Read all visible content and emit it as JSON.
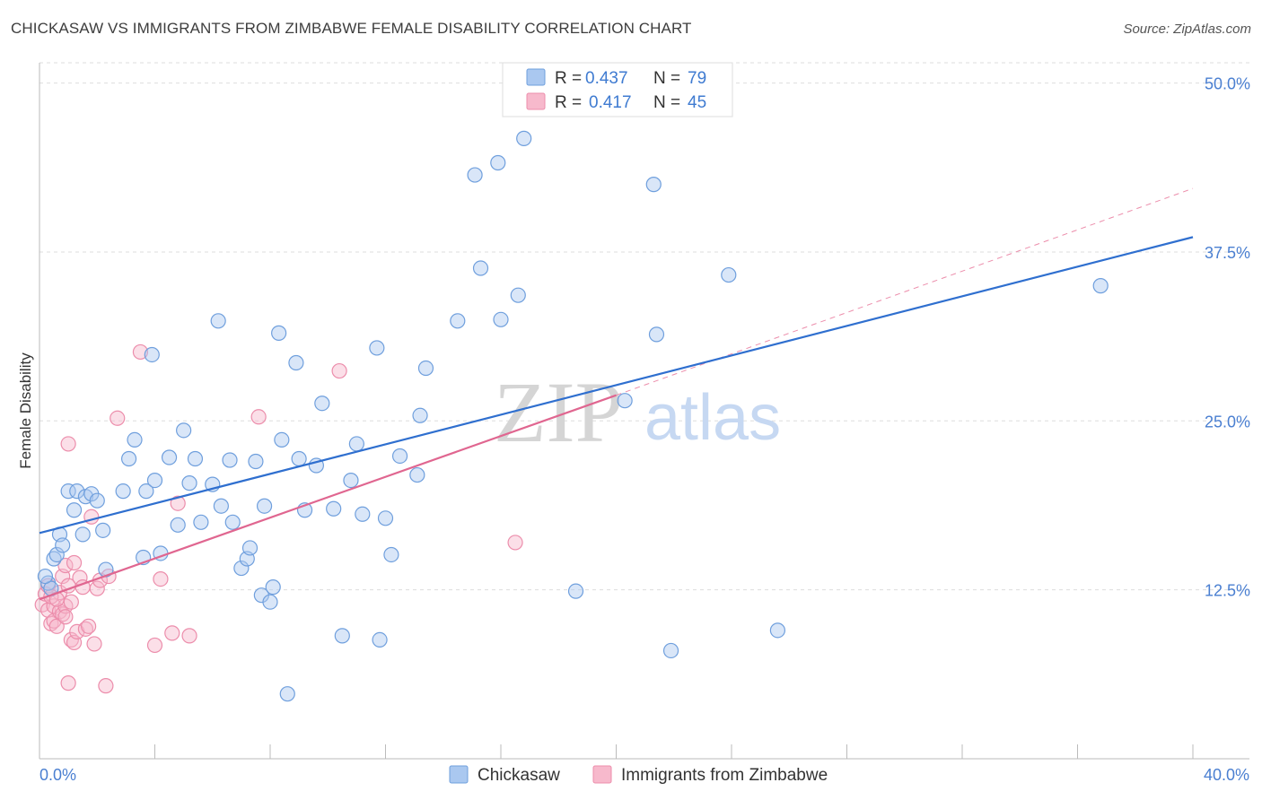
{
  "header": {
    "title": "CHICKASAW VS IMMIGRANTS FROM ZIMBABWE FEMALE DISABILITY CORRELATION CHART",
    "source": "Source: ZipAtlas.com"
  },
  "watermark": {
    "zip": "ZIP",
    "atlas": "atlas"
  },
  "legend_top": [
    {
      "r_label": "R =",
      "r": "0.437",
      "n_label": "N =",
      "n": "79"
    },
    {
      "r_label": "R =",
      "r": "0.417",
      "n_label": "N =",
      "n": "45"
    }
  ],
  "chart_data": {
    "type": "scatter",
    "title": "CHICKASAW VS IMMIGRANTS FROM ZIMBABWE FEMALE DISABILITY CORRELATION CHART",
    "xlabel": "",
    "ylabel": "Female Disability",
    "xlim": [
      0,
      40
    ],
    "ylim": [
      0,
      51.5
    ],
    "x_tick_labels": [
      "0.0%",
      "40.0%"
    ],
    "y_ticks": [
      12.5,
      25.0,
      37.5,
      50.0
    ],
    "y_tick_labels": [
      "12.5%",
      "25.0%",
      "37.5%",
      "50.0%"
    ],
    "legend": [
      "Chickasaw",
      "Immigrants from Zimbabwe"
    ],
    "colors": {
      "chickasaw_fill": "#aac8f0",
      "chickasaw_stroke": "#6f9fdd",
      "chickasaw_line": "#2f6fcf",
      "zimbabwe_fill": "#f7b9cc",
      "zimbabwe_stroke": "#ec8dab",
      "zimbabwe_line": "#e06690",
      "tick_text": "#4a7fd1"
    },
    "series": [
      {
        "name": "Chickasaw",
        "R": 0.437,
        "N": 79,
        "trend": {
          "x": [
            0,
            40
          ],
          "y": [
            16.7,
            38.6
          ]
        },
        "points": [
          [
            0.3,
            13.0
          ],
          [
            0.4,
            12.6
          ],
          [
            0.5,
            14.8
          ],
          [
            0.6,
            15.1
          ],
          [
            0.7,
            16.6
          ],
          [
            0.8,
            15.8
          ],
          [
            1.0,
            19.8
          ],
          [
            1.2,
            18.4
          ],
          [
            1.3,
            19.8
          ],
          [
            1.5,
            16.6
          ],
          [
            1.6,
            19.4
          ],
          [
            1.8,
            19.6
          ],
          [
            2.0,
            19.1
          ],
          [
            2.2,
            16.9
          ],
          [
            2.3,
            14.0
          ],
          [
            2.9,
            19.8
          ],
          [
            3.1,
            22.2
          ],
          [
            3.3,
            23.6
          ],
          [
            3.6,
            14.9
          ],
          [
            3.7,
            19.8
          ],
          [
            3.9,
            29.9
          ],
          [
            4.0,
            20.6
          ],
          [
            4.2,
            15.2
          ],
          [
            4.5,
            22.3
          ],
          [
            4.8,
            17.3
          ],
          [
            5.0,
            24.3
          ],
          [
            5.2,
            20.4
          ],
          [
            5.4,
            22.2
          ],
          [
            5.6,
            17.5
          ],
          [
            6.0,
            20.3
          ],
          [
            6.2,
            32.4
          ],
          [
            6.3,
            18.7
          ],
          [
            6.6,
            22.1
          ],
          [
            6.7,
            17.5
          ],
          [
            7.0,
            14.1
          ],
          [
            7.2,
            14.8
          ],
          [
            7.3,
            15.6
          ],
          [
            7.5,
            22.0
          ],
          [
            7.7,
            12.1
          ],
          [
            7.8,
            18.7
          ],
          [
            8.0,
            11.6
          ],
          [
            8.1,
            12.7
          ],
          [
            8.3,
            31.5
          ],
          [
            8.4,
            23.6
          ],
          [
            8.6,
            4.8
          ],
          [
            8.9,
            29.3
          ],
          [
            9.0,
            22.2
          ],
          [
            9.2,
            18.4
          ],
          [
            9.6,
            21.7
          ],
          [
            9.8,
            26.3
          ],
          [
            10.2,
            18.5
          ],
          [
            10.5,
            9.1
          ],
          [
            10.8,
            20.6
          ],
          [
            11.0,
            23.3
          ],
          [
            11.2,
            18.1
          ],
          [
            11.7,
            30.4
          ],
          [
            11.8,
            8.8
          ],
          [
            12.0,
            17.8
          ],
          [
            12.2,
            15.1
          ],
          [
            12.5,
            22.4
          ],
          [
            13.1,
            21.0
          ],
          [
            13.2,
            25.4
          ],
          [
            13.4,
            28.9
          ],
          [
            14.5,
            32.4
          ],
          [
            15.1,
            43.2
          ],
          [
            15.3,
            36.3
          ],
          [
            15.9,
            44.1
          ],
          [
            16.0,
            32.5
          ],
          [
            16.6,
            34.3
          ],
          [
            16.8,
            45.9
          ],
          [
            18.6,
            12.4
          ],
          [
            20.3,
            26.5
          ],
          [
            21.3,
            42.5
          ],
          [
            21.4,
            31.4
          ],
          [
            21.9,
            8.0
          ],
          [
            23.9,
            35.8
          ],
          [
            25.6,
            9.5
          ],
          [
            36.8,
            35.0
          ],
          [
            0.2,
            13.5
          ]
        ]
      },
      {
        "name": "Immigrants from Zimbabwe",
        "R": 0.417,
        "N": 45,
        "trend": {
          "x": [
            0,
            20
          ],
          "y": [
            11.8,
            26.9
          ]
        },
        "trend_extension": {
          "x": [
            20,
            40
          ],
          "y": [
            26.9,
            42.2
          ]
        },
        "points": [
          [
            0.1,
            11.4
          ],
          [
            0.2,
            12.2
          ],
          [
            0.3,
            11.0
          ],
          [
            0.3,
            12.8
          ],
          [
            0.4,
            10.0
          ],
          [
            0.5,
            10.2
          ],
          [
            0.5,
            11.3
          ],
          [
            0.6,
            9.8
          ],
          [
            0.7,
            10.9
          ],
          [
            0.7,
            12.3
          ],
          [
            0.8,
            13.5
          ],
          [
            0.8,
            10.7
          ],
          [
            0.9,
            14.3
          ],
          [
            0.9,
            11.3
          ],
          [
            1.0,
            12.8
          ],
          [
            1.1,
            8.8
          ],
          [
            1.1,
            11.6
          ],
          [
            1.2,
            8.6
          ],
          [
            1.2,
            14.5
          ],
          [
            1.3,
            9.4
          ],
          [
            1.4,
            13.4
          ],
          [
            1.5,
            12.7
          ],
          [
            1.6,
            9.6
          ],
          [
            1.7,
            9.8
          ],
          [
            1.8,
            17.9
          ],
          [
            1.9,
            8.5
          ],
          [
            2.0,
            12.6
          ],
          [
            2.1,
            13.2
          ],
          [
            2.3,
            5.4
          ],
          [
            2.7,
            25.2
          ],
          [
            3.5,
            30.1
          ],
          [
            4.0,
            8.4
          ],
          [
            4.2,
            13.3
          ],
          [
            4.6,
            9.3
          ],
          [
            4.8,
            18.9
          ],
          [
            5.2,
            9.1
          ],
          [
            7.6,
            25.3
          ],
          [
            10.4,
            28.7
          ],
          [
            16.5,
            16.0
          ],
          [
            1.0,
            23.3
          ],
          [
            0.4,
            12.0
          ],
          [
            0.6,
            11.8
          ],
          [
            1.0,
            5.6
          ],
          [
            2.4,
            13.5
          ],
          [
            0.9,
            10.5
          ]
        ]
      }
    ]
  },
  "legend_bottom": {
    "items": [
      "Chickasaw",
      "Immigrants from Zimbabwe"
    ]
  }
}
